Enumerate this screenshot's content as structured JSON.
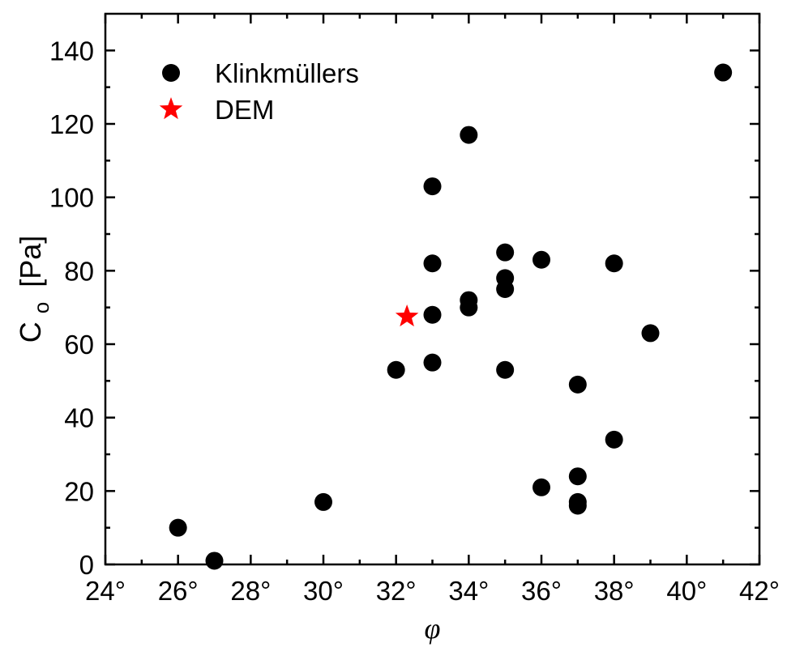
{
  "chart_data": {
    "type": "scatter",
    "xlabel": "φ",
    "ylabel": {
      "main": "C",
      "subscript": "o",
      "unit": "[Pa]"
    },
    "xlim": [
      24,
      42
    ],
    "ylim": [
      0,
      150
    ],
    "x_ticks": [
      24,
      26,
      28,
      30,
      32,
      34,
      36,
      38,
      40,
      42
    ],
    "x_tick_labels": [
      "24°",
      "26°",
      "28°",
      "30°",
      "32°",
      "34°",
      "36°",
      "38°",
      "40°",
      "42°"
    ],
    "y_ticks": [
      0,
      20,
      40,
      60,
      80,
      100,
      120,
      140
    ],
    "y_tick_labels": [
      "0",
      "20",
      "40",
      "60",
      "80",
      "100",
      "120",
      "140"
    ],
    "grid": false,
    "legend_position": "top-left",
    "series": [
      {
        "name": "Klinkmüllers",
        "marker": "circle",
        "color": "#000000",
        "points": [
          [
            26,
            10
          ],
          [
            27,
            1
          ],
          [
            30,
            17
          ],
          [
            32,
            53
          ],
          [
            33,
            103
          ],
          [
            33,
            82
          ],
          [
            33,
            68
          ],
          [
            33,
            55
          ],
          [
            34,
            117
          ],
          [
            34,
            72
          ],
          [
            34,
            70
          ],
          [
            35,
            85
          ],
          [
            35,
            78
          ],
          [
            35,
            75
          ],
          [
            35,
            53
          ],
          [
            36,
            83
          ],
          [
            36,
            21
          ],
          [
            37,
            49
          ],
          [
            37,
            24
          ],
          [
            37,
            17
          ],
          [
            37,
            16
          ],
          [
            38,
            82
          ],
          [
            38,
            34
          ],
          [
            39,
            63
          ],
          [
            41,
            134
          ]
        ]
      },
      {
        "name": "DEM",
        "marker": "star",
        "color": "#ff0000",
        "points": [
          [
            32.3,
            67.5
          ]
        ]
      }
    ]
  }
}
